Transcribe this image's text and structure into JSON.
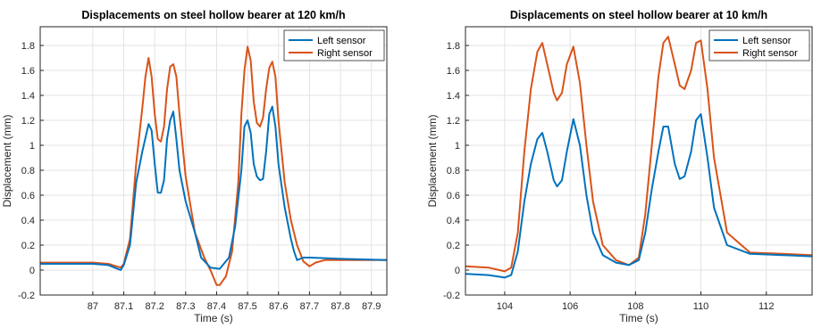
{
  "chart_data": [
    {
      "type": "line",
      "title": "Displacements on steel hollow bearer at 120 km/h",
      "xlabel": "Time (s)",
      "ylabel": "Displacement (mm)",
      "xlim": [
        86.83,
        87.95
      ],
      "ylim": [
        -0.2,
        1.95
      ],
      "xticks": [
        87,
        87.1,
        87.2,
        87.3,
        87.4,
        87.5,
        87.6,
        87.7,
        87.8,
        87.9
      ],
      "yticks": [
        -0.2,
        0,
        0.2,
        0.4,
        0.6,
        0.8,
        1,
        1.2,
        1.4,
        1.6,
        1.8
      ],
      "grid": true,
      "legend_position": "top-right",
      "series": [
        {
          "name": "Left sensor",
          "color": "#0072BD",
          "x": [
            86.83,
            87.0,
            87.05,
            87.09,
            87.1,
            87.12,
            87.14,
            87.16,
            87.18,
            87.19,
            87.2,
            87.21,
            87.22,
            87.23,
            87.24,
            87.25,
            87.26,
            87.27,
            87.28,
            87.3,
            87.33,
            87.35,
            87.38,
            87.41,
            87.44,
            87.46,
            87.48,
            87.49,
            87.5,
            87.51,
            87.52,
            87.53,
            87.54,
            87.55,
            87.56,
            87.57,
            87.58,
            87.59,
            87.6,
            87.62,
            87.64,
            87.65,
            87.66,
            87.68,
            87.7,
            87.8,
            87.95
          ],
          "y": [
            0.05,
            0.05,
            0.04,
            0.0,
            0.04,
            0.2,
            0.7,
            0.95,
            1.17,
            1.12,
            0.85,
            0.62,
            0.62,
            0.72,
            1.05,
            1.2,
            1.27,
            1.05,
            0.8,
            0.55,
            0.3,
            0.1,
            0.02,
            0.01,
            0.1,
            0.35,
            0.8,
            1.15,
            1.2,
            1.1,
            0.85,
            0.75,
            0.72,
            0.73,
            0.95,
            1.25,
            1.31,
            1.15,
            0.85,
            0.5,
            0.25,
            0.15,
            0.08,
            0.1,
            0.1,
            0.09,
            0.08
          ]
        },
        {
          "name": "Right sensor",
          "color": "#D95319",
          "x": [
            86.83,
            87.0,
            87.05,
            87.09,
            87.1,
            87.12,
            87.14,
            87.16,
            87.17,
            87.18,
            87.19,
            87.2,
            87.21,
            87.22,
            87.23,
            87.24,
            87.25,
            87.26,
            87.27,
            87.28,
            87.3,
            87.33,
            87.36,
            87.38,
            87.4,
            87.41,
            87.43,
            87.45,
            87.47,
            87.48,
            87.49,
            87.5,
            87.51,
            87.52,
            87.53,
            87.54,
            87.55,
            87.56,
            87.57,
            87.58,
            87.59,
            87.6,
            87.62,
            87.64,
            87.66,
            87.68,
            87.7,
            87.72,
            87.75,
            87.8,
            87.95
          ],
          "y": [
            0.06,
            0.06,
            0.05,
            0.02,
            0.05,
            0.25,
            0.85,
            1.3,
            1.55,
            1.7,
            1.55,
            1.25,
            1.05,
            1.03,
            1.15,
            1.45,
            1.63,
            1.65,
            1.55,
            1.25,
            0.75,
            0.3,
            0.1,
            0.0,
            -0.12,
            -0.12,
            -0.05,
            0.15,
            0.7,
            1.25,
            1.6,
            1.79,
            1.68,
            1.35,
            1.18,
            1.15,
            1.22,
            1.45,
            1.62,
            1.67,
            1.55,
            1.2,
            0.7,
            0.4,
            0.2,
            0.07,
            0.03,
            0.06,
            0.08,
            0.08,
            0.08
          ]
        }
      ]
    },
    {
      "type": "line",
      "title": "Displacements on steel hollow bearer at 10 km/h",
      "xlabel": "Time (s)",
      "ylabel": "Displacement (mm)",
      "xlim": [
        102.8,
        113.4
      ],
      "ylim": [
        -0.2,
        1.95
      ],
      "xticks": [
        104,
        106,
        108,
        110,
        112
      ],
      "yticks": [
        -0.2,
        0,
        0.2,
        0.4,
        0.6,
        0.8,
        1,
        1.2,
        1.4,
        1.6,
        1.8
      ],
      "grid": true,
      "legend_position": "top-right",
      "series": [
        {
          "name": "Left sensor",
          "color": "#0072BD",
          "x": [
            102.8,
            103.5,
            104.0,
            104.2,
            104.4,
            104.6,
            104.8,
            105.0,
            105.15,
            105.3,
            105.5,
            105.6,
            105.75,
            105.9,
            106.1,
            106.3,
            106.5,
            106.7,
            107.0,
            107.4,
            107.8,
            108.1,
            108.3,
            108.5,
            108.7,
            108.85,
            109.0,
            109.2,
            109.35,
            109.5,
            109.7,
            109.85,
            110.0,
            110.2,
            110.4,
            110.8,
            111.5,
            112.5,
            113.4
          ],
          "y": [
            -0.03,
            -0.04,
            -0.06,
            -0.04,
            0.15,
            0.55,
            0.85,
            1.05,
            1.1,
            0.95,
            0.72,
            0.67,
            0.72,
            0.95,
            1.21,
            1.0,
            0.6,
            0.3,
            0.12,
            0.06,
            0.04,
            0.08,
            0.3,
            0.65,
            0.95,
            1.15,
            1.15,
            0.85,
            0.73,
            0.75,
            0.95,
            1.2,
            1.25,
            0.9,
            0.5,
            0.2,
            0.13,
            0.12,
            0.11
          ]
        },
        {
          "name": "Right sensor",
          "color": "#D95319",
          "x": [
            102.8,
            103.5,
            104.0,
            104.2,
            104.4,
            104.6,
            104.8,
            105.0,
            105.15,
            105.3,
            105.5,
            105.6,
            105.75,
            105.9,
            106.1,
            106.3,
            106.5,
            106.7,
            107.0,
            107.4,
            107.8,
            108.1,
            108.3,
            108.5,
            108.7,
            108.85,
            109.0,
            109.2,
            109.35,
            109.5,
            109.7,
            109.85,
            110.0,
            110.2,
            110.4,
            110.8,
            111.5,
            112.5,
            113.4
          ],
          "y": [
            0.03,
            0.02,
            -0.01,
            0.02,
            0.3,
            0.95,
            1.45,
            1.75,
            1.82,
            1.65,
            1.42,
            1.36,
            1.42,
            1.65,
            1.79,
            1.5,
            1.0,
            0.55,
            0.2,
            0.08,
            0.04,
            0.1,
            0.45,
            1.0,
            1.55,
            1.82,
            1.87,
            1.65,
            1.48,
            1.45,
            1.6,
            1.82,
            1.84,
            1.45,
            0.9,
            0.3,
            0.14,
            0.13,
            0.12
          ]
        }
      ]
    }
  ]
}
